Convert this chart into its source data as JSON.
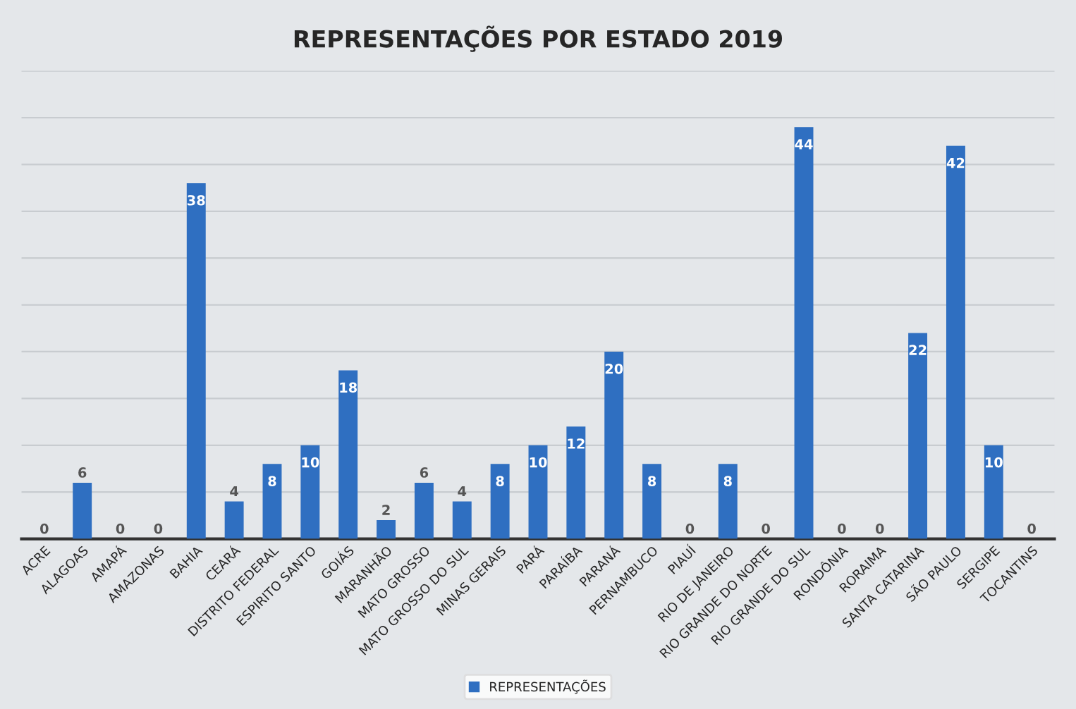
{
  "chart_data": {
    "type": "bar",
    "title": "REPRESENTAÇÕES POR ESTADO 2019",
    "categories": [
      "ACRE",
      "ALAGOAS",
      "AMAPÁ",
      "AMAZONAS",
      "BAHIA",
      "CEARÁ",
      "DISTRITO FEDERAL",
      "ESPIRITO SANTO",
      "GOIÁS",
      "MARANHÃO",
      "MATO GROSSO",
      "MATO GROSSO DO SUL",
      "MINAS GERAIS",
      "PARÁ",
      "PARAÍBA",
      "PARANÁ",
      "PERNAMBUCO",
      "PIAUÍ",
      "RIO DE JANEIRO",
      "RIO GRANDE DO NORTE",
      "RIO GRANDE DO SUL",
      "RONDÔNIA",
      "RORAIMA",
      "SANTA CATARINA",
      "SÃO PAULO",
      "SERGIPE",
      "TOCANTINS"
    ],
    "series": [
      {
        "name": "REPRESENTAÇÕES",
        "color": "#2f6fc1",
        "values": [
          0,
          6,
          0,
          0,
          38,
          4,
          8,
          10,
          18,
          2,
          6,
          4,
          8,
          10,
          12,
          20,
          8,
          0,
          8,
          0,
          44,
          0,
          0,
          22,
          42,
          10,
          0
        ]
      }
    ],
    "ylim": [
      0,
      50
    ],
    "yticks": [
      {
        "value": 0,
        "label": null
      },
      {
        "value": 5,
        "label": null
      },
      {
        "value": 10,
        "label": null
      },
      {
        "value": 15,
        "label": null
      },
      {
        "value": 20,
        "label": null
      },
      {
        "value": 25,
        "label": null
      },
      {
        "value": 30,
        "label": null
      },
      {
        "value": 35,
        "label": null
      },
      {
        "value": 40,
        "label": null
      },
      {
        "value": 45,
        "label": null
      },
      {
        "value": 50,
        "label": null
      }
    ],
    "tick_labels": "x",
    "grid": "y",
    "data_labels": true,
    "legend": "bottom"
  }
}
